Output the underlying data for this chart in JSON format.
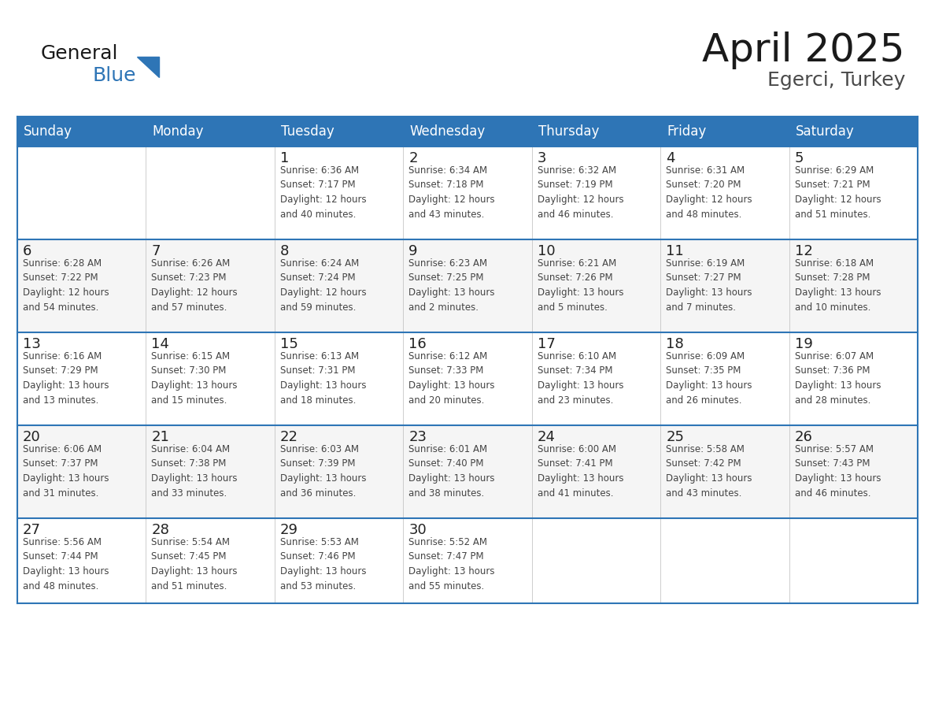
{
  "title": "April 2025",
  "subtitle": "Egerci, Turkey",
  "header_color": "#2E75B6",
  "header_text_color": "#FFFFFF",
  "border_color": "#2E75B6",
  "text_color": "#333333",
  "days_of_week": [
    "Sunday",
    "Monday",
    "Tuesday",
    "Wednesday",
    "Thursday",
    "Friday",
    "Saturday"
  ],
  "weeks": [
    [
      {
        "day": "",
        "info": ""
      },
      {
        "day": "",
        "info": ""
      },
      {
        "day": "1",
        "info": "Sunrise: 6:36 AM\nSunset: 7:17 PM\nDaylight: 12 hours\nand 40 minutes."
      },
      {
        "day": "2",
        "info": "Sunrise: 6:34 AM\nSunset: 7:18 PM\nDaylight: 12 hours\nand 43 minutes."
      },
      {
        "day": "3",
        "info": "Sunrise: 6:32 AM\nSunset: 7:19 PM\nDaylight: 12 hours\nand 46 minutes."
      },
      {
        "day": "4",
        "info": "Sunrise: 6:31 AM\nSunset: 7:20 PM\nDaylight: 12 hours\nand 48 minutes."
      },
      {
        "day": "5",
        "info": "Sunrise: 6:29 AM\nSunset: 7:21 PM\nDaylight: 12 hours\nand 51 minutes."
      }
    ],
    [
      {
        "day": "6",
        "info": "Sunrise: 6:28 AM\nSunset: 7:22 PM\nDaylight: 12 hours\nand 54 minutes."
      },
      {
        "day": "7",
        "info": "Sunrise: 6:26 AM\nSunset: 7:23 PM\nDaylight: 12 hours\nand 57 minutes."
      },
      {
        "day": "8",
        "info": "Sunrise: 6:24 AM\nSunset: 7:24 PM\nDaylight: 12 hours\nand 59 minutes."
      },
      {
        "day": "9",
        "info": "Sunrise: 6:23 AM\nSunset: 7:25 PM\nDaylight: 13 hours\nand 2 minutes."
      },
      {
        "day": "10",
        "info": "Sunrise: 6:21 AM\nSunset: 7:26 PM\nDaylight: 13 hours\nand 5 minutes."
      },
      {
        "day": "11",
        "info": "Sunrise: 6:19 AM\nSunset: 7:27 PM\nDaylight: 13 hours\nand 7 minutes."
      },
      {
        "day": "12",
        "info": "Sunrise: 6:18 AM\nSunset: 7:28 PM\nDaylight: 13 hours\nand 10 minutes."
      }
    ],
    [
      {
        "day": "13",
        "info": "Sunrise: 6:16 AM\nSunset: 7:29 PM\nDaylight: 13 hours\nand 13 minutes."
      },
      {
        "day": "14",
        "info": "Sunrise: 6:15 AM\nSunset: 7:30 PM\nDaylight: 13 hours\nand 15 minutes."
      },
      {
        "day": "15",
        "info": "Sunrise: 6:13 AM\nSunset: 7:31 PM\nDaylight: 13 hours\nand 18 minutes."
      },
      {
        "day": "16",
        "info": "Sunrise: 6:12 AM\nSunset: 7:33 PM\nDaylight: 13 hours\nand 20 minutes."
      },
      {
        "day": "17",
        "info": "Sunrise: 6:10 AM\nSunset: 7:34 PM\nDaylight: 13 hours\nand 23 minutes."
      },
      {
        "day": "18",
        "info": "Sunrise: 6:09 AM\nSunset: 7:35 PM\nDaylight: 13 hours\nand 26 minutes."
      },
      {
        "day": "19",
        "info": "Sunrise: 6:07 AM\nSunset: 7:36 PM\nDaylight: 13 hours\nand 28 minutes."
      }
    ],
    [
      {
        "day": "20",
        "info": "Sunrise: 6:06 AM\nSunset: 7:37 PM\nDaylight: 13 hours\nand 31 minutes."
      },
      {
        "day": "21",
        "info": "Sunrise: 6:04 AM\nSunset: 7:38 PM\nDaylight: 13 hours\nand 33 minutes."
      },
      {
        "day": "22",
        "info": "Sunrise: 6:03 AM\nSunset: 7:39 PM\nDaylight: 13 hours\nand 36 minutes."
      },
      {
        "day": "23",
        "info": "Sunrise: 6:01 AM\nSunset: 7:40 PM\nDaylight: 13 hours\nand 38 minutes."
      },
      {
        "day": "24",
        "info": "Sunrise: 6:00 AM\nSunset: 7:41 PM\nDaylight: 13 hours\nand 41 minutes."
      },
      {
        "day": "25",
        "info": "Sunrise: 5:58 AM\nSunset: 7:42 PM\nDaylight: 13 hours\nand 43 minutes."
      },
      {
        "day": "26",
        "info": "Sunrise: 5:57 AM\nSunset: 7:43 PM\nDaylight: 13 hours\nand 46 minutes."
      }
    ],
    [
      {
        "day": "27",
        "info": "Sunrise: 5:56 AM\nSunset: 7:44 PM\nDaylight: 13 hours\nand 48 minutes."
      },
      {
        "day": "28",
        "info": "Sunrise: 5:54 AM\nSunset: 7:45 PM\nDaylight: 13 hours\nand 51 minutes."
      },
      {
        "day": "29",
        "info": "Sunrise: 5:53 AM\nSunset: 7:46 PM\nDaylight: 13 hours\nand 53 minutes."
      },
      {
        "day": "30",
        "info": "Sunrise: 5:52 AM\nSunset: 7:47 PM\nDaylight: 13 hours\nand 55 minutes."
      },
      {
        "day": "",
        "info": ""
      },
      {
        "day": "",
        "info": ""
      },
      {
        "day": "",
        "info": ""
      }
    ]
  ],
  "logo_general_color": "#1a1a1a",
  "logo_blue_color": "#2E75B6",
  "figsize": [
    11.88,
    9.18
  ],
  "dpi": 100
}
